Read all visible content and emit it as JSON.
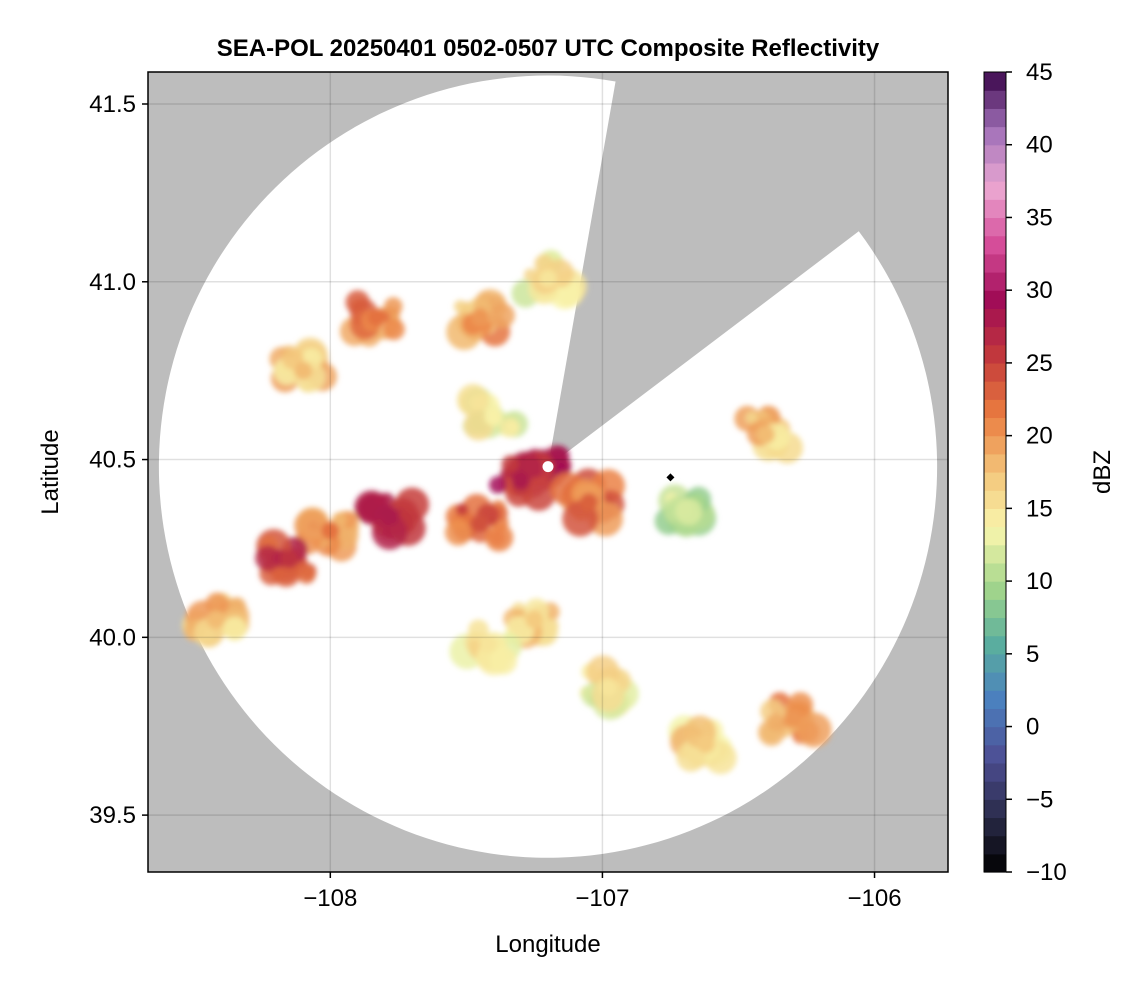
{
  "chart_data": {
    "type": "heatmap",
    "title": "SEA-POL 20250401 0502-0507 UTC Composite Reflectivity",
    "xlabel": "Longitude",
    "ylabel": "Latitude",
    "xlim": [
      -108.67,
      -105.73
    ],
    "ylim": [
      39.34,
      41.59
    ],
    "x_ticks": [
      -108,
      -107,
      -106
    ],
    "x_tick_labels": [
      "−108",
      "−107",
      "−106"
    ],
    "y_ticks": [
      39.5,
      40.0,
      40.5,
      41.0,
      41.5
    ],
    "y_tick_labels": [
      "39.5",
      "40.0",
      "40.5",
      "41.0",
      "41.5"
    ],
    "grid": true,
    "background_color": "#bdbdbd",
    "radar": {
      "center_lon": -107.2,
      "center_lat": 40.48,
      "range_lon": 1.43,
      "range_lat": 1.1,
      "blocked_sector_azimuths_deg": [
        [
          10,
          53
        ]
      ]
    },
    "echoes": [
      {
        "lon": -107.22,
        "lat": 40.47,
        "dbz": 31
      },
      {
        "lon": -107.3,
        "lat": 40.44,
        "dbz": 28
      },
      {
        "lon": -107.05,
        "lat": 40.38,
        "dbz": 23
      },
      {
        "lon": -107.45,
        "lat": 40.32,
        "dbz": 24
      },
      {
        "lon": -107.78,
        "lat": 40.34,
        "dbz": 28
      },
      {
        "lon": -108.0,
        "lat": 40.3,
        "dbz": 22
      },
      {
        "lon": -108.15,
        "lat": 40.22,
        "dbz": 26
      },
      {
        "lon": -107.4,
        "lat": 40.62,
        "dbz": 14
      },
      {
        "lon": -106.7,
        "lat": 40.36,
        "dbz": 12
      },
      {
        "lon": -107.25,
        "lat": 40.05,
        "dbz": 17
      },
      {
        "lon": -107.42,
        "lat": 39.98,
        "dbz": 15
      },
      {
        "lon": -107.45,
        "lat": 40.9,
        "dbz": 20
      },
      {
        "lon": -107.83,
        "lat": 40.9,
        "dbz": 22
      },
      {
        "lon": -107.2,
        "lat": 41.01,
        "dbz": 15
      },
      {
        "lon": -108.1,
        "lat": 40.75,
        "dbz": 18
      },
      {
        "lon": -106.4,
        "lat": 40.57,
        "dbz": 18
      },
      {
        "lon": -106.3,
        "lat": 39.77,
        "dbz": 20
      },
      {
        "lon": -106.62,
        "lat": 39.7,
        "dbz": 17
      },
      {
        "lon": -108.42,
        "lat": 40.05,
        "dbz": 18
      },
      {
        "lon": -106.98,
        "lat": 39.86,
        "dbz": 15
      }
    ],
    "marker": {
      "lon": -106.75,
      "lat": 40.45,
      "symbol": "diamond"
    },
    "colorbar": {
      "label": "dBZ",
      "range": [
        -10,
        45
      ],
      "ticks": [
        -10,
        -5,
        0,
        5,
        10,
        15,
        20,
        25,
        30,
        35,
        40,
        45
      ],
      "tick_labels": [
        "−10",
        "−5",
        "0",
        "5",
        "10",
        "15",
        "20",
        "25",
        "30",
        "35",
        "40",
        "45"
      ],
      "colors": [
        "#000000",
        "#2b2c4c",
        "#4d4f94",
        "#4b7fbf",
        "#5aae9e",
        "#a4d68b",
        "#f9f6ad",
        "#f3c57a",
        "#ea7c40",
        "#c33a3b",
        "#a00b55",
        "#d64f9b",
        "#eba8d2",
        "#a070b8",
        "#3a0549"
      ]
    }
  }
}
